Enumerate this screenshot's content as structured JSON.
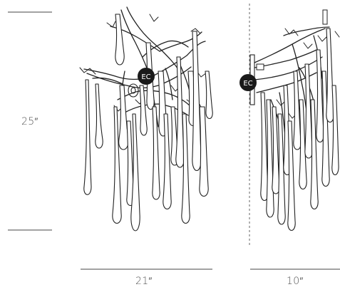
{
  "dimensions": {
    "height": "25″",
    "width": "21″",
    "depth": "10″"
  },
  "badges": {
    "front": "EC",
    "side": "EC"
  },
  "colors": {
    "line": "#222222",
    "badge_fill": "#1a1a1a",
    "badge_text": "#ffffff",
    "dim_text": "#555555"
  }
}
